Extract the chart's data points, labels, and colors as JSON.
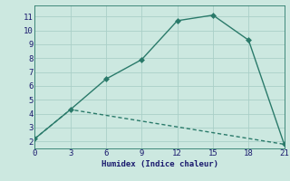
{
  "line1_x": [
    0,
    3,
    6,
    9,
    12,
    15,
    18,
    21
  ],
  "line1_y": [
    2.2,
    4.3,
    6.5,
    7.9,
    10.7,
    11.1,
    9.3,
    1.8
  ],
  "line2_x": [
    0,
    3,
    21
  ],
  "line2_y": [
    2.2,
    4.3,
    1.8
  ],
  "color": "#2a7a6a",
  "bg_color": "#cce8e0",
  "grid_color": "#aacfc8",
  "xlabel": "Humidex (Indice chaleur)",
  "xlim": [
    0,
    21
  ],
  "ylim": [
    1.5,
    11.8
  ],
  "xticks": [
    0,
    3,
    6,
    9,
    12,
    15,
    18,
    21
  ],
  "yticks": [
    2,
    3,
    4,
    5,
    6,
    7,
    8,
    9,
    10,
    11
  ],
  "markersize": 3,
  "linewidth": 1.0
}
